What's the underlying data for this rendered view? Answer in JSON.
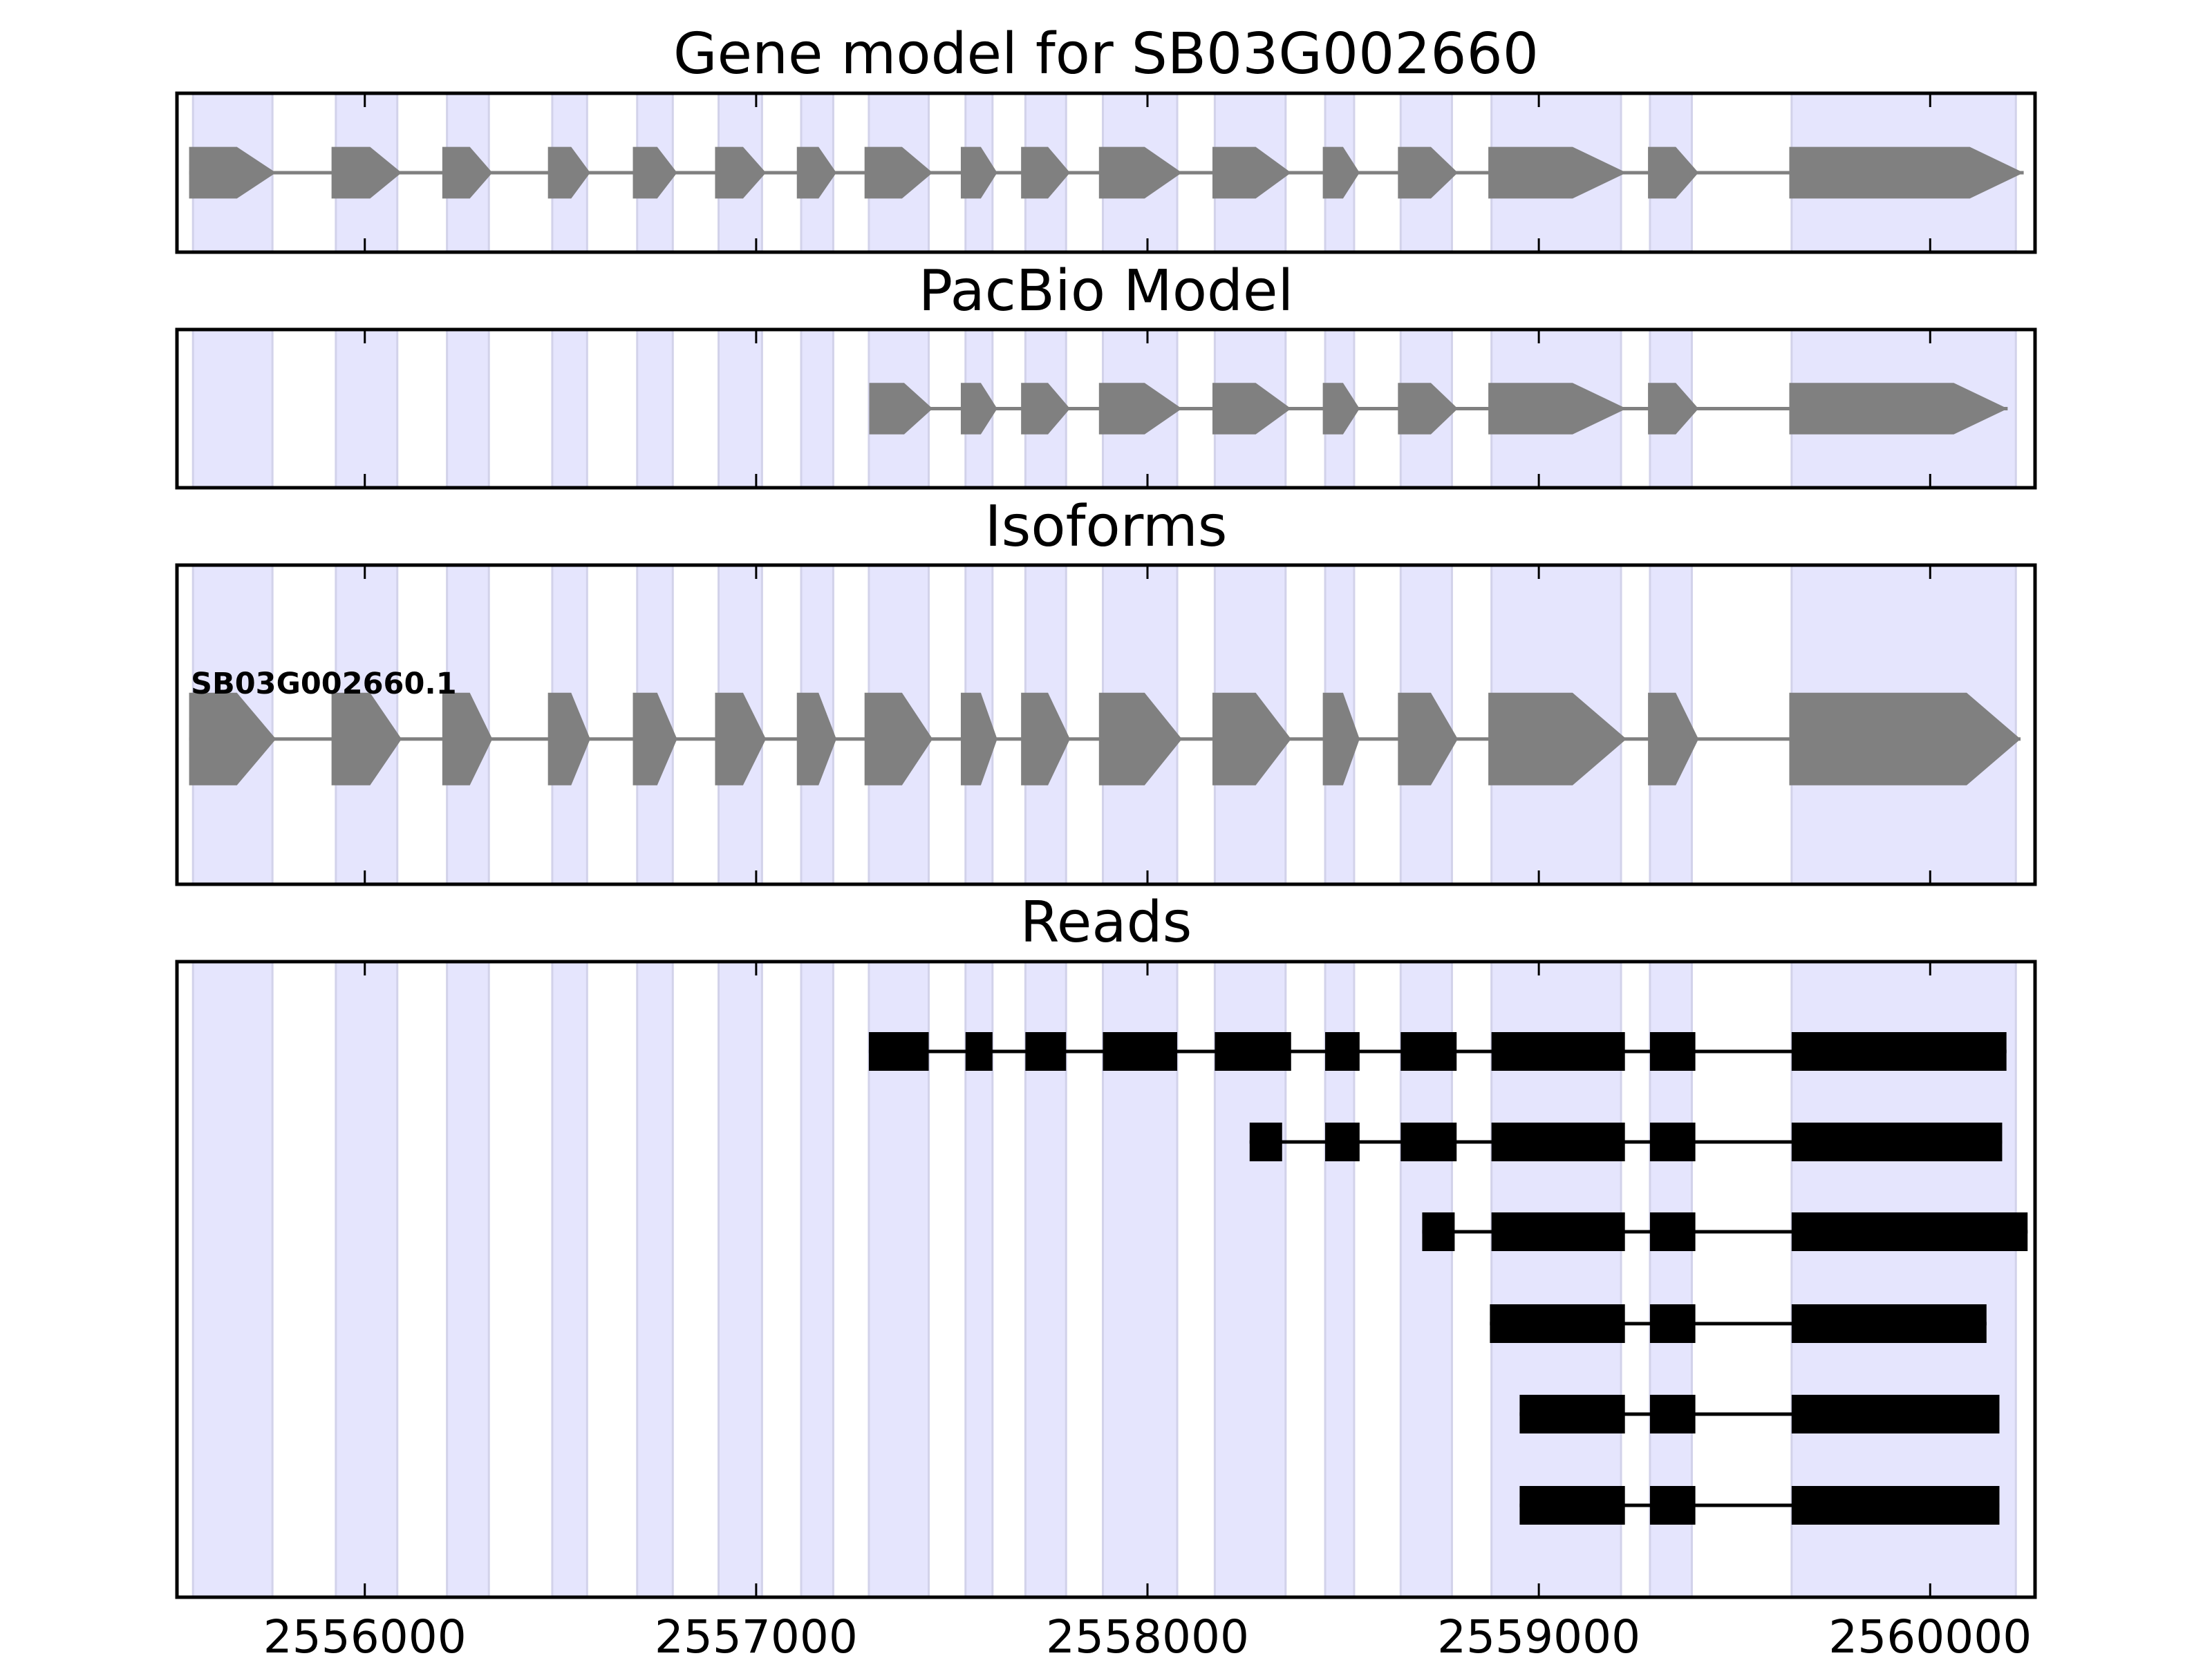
{
  "chart_data": {
    "type": "gene-track",
    "xlim": [
      2555520,
      2560268
    ],
    "xticks": [
      2556000,
      2557000,
      2558000,
      2559000,
      2560000
    ],
    "xtick_labels": [
      "2556000",
      "2557000",
      "2558000",
      "2559000",
      "2560000"
    ],
    "colors": {
      "band": "#e5e5fd",
      "band_edge": "#d2d2ea",
      "model": "#808080",
      "read": "#000000"
    },
    "bands": [
      [
        2555561,
        2555764
      ],
      [
        2555926,
        2556083
      ],
      [
        2556210,
        2556317
      ],
      [
        2556479,
        2556568
      ],
      [
        2556696,
        2556787
      ],
      [
        2556904,
        2557015
      ],
      [
        2557115,
        2557197
      ],
      [
        2557288,
        2557441
      ],
      [
        2557535,
        2557604
      ],
      [
        2557688,
        2557792
      ],
      [
        2557886,
        2558076
      ],
      [
        2558172,
        2558353
      ],
      [
        2558454,
        2558528
      ],
      [
        2558647,
        2558778
      ],
      [
        2558879,
        2559210
      ],
      [
        2559284,
        2559391
      ],
      [
        2559646,
        2560219
      ]
    ],
    "panels": [
      {
        "title": "Gene model for SB03G002660",
        "kind": "model",
        "exons": [
          [
            2555551,
            2555773
          ],
          [
            2555915,
            2556094
          ],
          [
            2556198,
            2556326
          ],
          [
            2556468,
            2556576
          ],
          [
            2556685,
            2556798
          ],
          [
            2556895,
            2557025
          ],
          [
            2557104,
            2557205
          ],
          [
            2557277,
            2557451
          ],
          [
            2557523,
            2557616
          ],
          [
            2557677,
            2557802
          ],
          [
            2557876,
            2558088
          ],
          [
            2558166,
            2558367
          ],
          [
            2558448,
            2558542
          ],
          [
            2558640,
            2558793
          ],
          [
            2558871,
            2559224
          ],
          [
            2559279,
            2559408
          ],
          [
            2559640,
            2560239
          ]
        ]
      },
      {
        "title": "PacBio Model",
        "kind": "model",
        "exons": [
          [
            2557289,
            2557451
          ],
          [
            2557523,
            2557616
          ],
          [
            2557677,
            2557802
          ],
          [
            2557876,
            2558088
          ],
          [
            2558166,
            2558367
          ],
          [
            2558448,
            2558542
          ],
          [
            2558640,
            2558793
          ],
          [
            2558871,
            2559224
          ],
          [
            2559279,
            2559408
          ],
          [
            2559640,
            2560198
          ]
        ]
      },
      {
        "title": "Isoforms",
        "kind": "isoform",
        "isoform_label": "SB03G002660.1",
        "exons": [
          [
            2555551,
            2555773
          ],
          [
            2555915,
            2556094
          ],
          [
            2556198,
            2556326
          ],
          [
            2556468,
            2556576
          ],
          [
            2556685,
            2556798
          ],
          [
            2556895,
            2557025
          ],
          [
            2557104,
            2557205
          ],
          [
            2557277,
            2557451
          ],
          [
            2557523,
            2557616
          ],
          [
            2557677,
            2557802
          ],
          [
            2557876,
            2558088
          ],
          [
            2558166,
            2558367
          ],
          [
            2558448,
            2558542
          ],
          [
            2558640,
            2558793
          ],
          [
            2558871,
            2559224
          ],
          [
            2559279,
            2559408
          ],
          [
            2559640,
            2560231
          ]
        ]
      },
      {
        "title": "Reads",
        "kind": "reads",
        "reads": [
          [
            [
              2557288,
              2557441
            ],
            [
              2557535,
              2557604
            ],
            [
              2557688,
              2557792
            ],
            [
              2557886,
              2558076
            ],
            [
              2558172,
              2558367
            ],
            [
              2558454,
              2558542
            ],
            [
              2558647,
              2558790
            ],
            [
              2558879,
              2559220
            ],
            [
              2559284,
              2559400
            ],
            [
              2559646,
              2560195
            ]
          ],
          [
            [
              2558261,
              2558344
            ],
            [
              2558454,
              2558542
            ],
            [
              2558647,
              2558790
            ],
            [
              2558879,
              2559220
            ],
            [
              2559284,
              2559400
            ],
            [
              2559646,
              2560184
            ]
          ],
          [
            [
              2558702,
              2558785
            ],
            [
              2558879,
              2559220
            ],
            [
              2559284,
              2559400
            ],
            [
              2559646,
              2560249
            ]
          ],
          [
            [
              2558875,
              2559220
            ],
            [
              2559284,
              2559400
            ],
            [
              2559646,
              2560144
            ]
          ],
          [
            [
              2558951,
              2559220
            ],
            [
              2559284,
              2559400
            ],
            [
              2559646,
              2560177
            ]
          ],
          [
            [
              2558951,
              2559220
            ],
            [
              2559284,
              2559400
            ],
            [
              2559646,
              2560177
            ]
          ]
        ]
      }
    ]
  }
}
